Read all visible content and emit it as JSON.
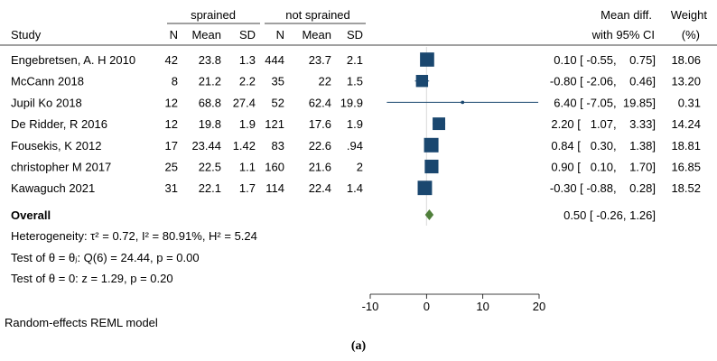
{
  "chart_data": {
    "type": "forest",
    "group_headers": [
      "sprained",
      "not sprained"
    ],
    "columns": [
      "Study",
      "N",
      "Mean",
      "SD",
      "N",
      "Mean",
      "SD"
    ],
    "effect_header": [
      "Mean diff.",
      "with 95% CI"
    ],
    "weight_header": [
      "Weight",
      "(%)"
    ],
    "studies": [
      {
        "name": "Engebretsen, A. H 2010",
        "n1": "42",
        "mean1": "23.8",
        "sd1": "1.3",
        "n2": "444",
        "mean2": "23.7",
        "sd2": "2.1",
        "es": 0.1,
        "lo": -0.55,
        "hi": 0.75,
        "ci_text": "0.10 [ -0.55,    0.75]",
        "weight": "18.06",
        "weight_value": 18.06
      },
      {
        "name": "McCann 2018",
        "n1": "8",
        "mean1": "21.2",
        "sd1": "2.2",
        "n2": "35",
        "mean2": "22",
        "sd2": "1.5",
        "es": -0.8,
        "lo": -2.06,
        "hi": 0.46,
        "ci_text": "-0.80 [ -2.06,    0.46]",
        "weight": "13.20",
        "weight_value": 13.2
      },
      {
        "name": "Jupil Ko 2018",
        "n1": "12",
        "mean1": "68.8",
        "sd1": "27.4",
        "n2": "52",
        "mean2": "62.4",
        "sd2": "19.9",
        "es": 6.4,
        "lo": -7.05,
        "hi": 19.85,
        "ci_text": "6.40 [ -7.05,  19.85]",
        "weight": "0.31",
        "weight_value": 0.31
      },
      {
        "name": "De Ridder, R 2016",
        "n1": "12",
        "mean1": "19.8",
        "sd1": "1.9",
        "n2": "121",
        "mean2": "17.6",
        "sd2": "1.9",
        "es": 2.2,
        "lo": 1.07,
        "hi": 3.33,
        "ci_text": "2.20 [   1.07,    3.33]",
        "weight": "14.24",
        "weight_value": 14.24
      },
      {
        "name": "Fousekis, K 2012",
        "n1": "17",
        "mean1": "23.44",
        "sd1": "1.42",
        "n2": "83",
        "mean2": "22.6",
        "sd2": ".94",
        "es": 0.84,
        "lo": 0.3,
        "hi": 1.38,
        "ci_text": "0.84 [   0.30,    1.38]",
        "weight": "18.81",
        "weight_value": 18.81
      },
      {
        "name": "christopher M 2017",
        "n1": "25",
        "mean1": "22.5",
        "sd1": "1.1",
        "n2": "160",
        "mean2": "21.6",
        "sd2": "2",
        "es": 0.9,
        "lo": 0.1,
        "hi": 1.7,
        "ci_text": "0.90 [   0.10,    1.70]",
        "weight": "16.85",
        "weight_value": 16.85
      },
      {
        "name": "Kawaguch 2021",
        "n1": "31",
        "mean1": "22.1",
        "sd1": "1.7",
        "n2": "114",
        "mean2": "22.4",
        "sd2": "1.4",
        "es": -0.3,
        "lo": -0.88,
        "hi": 0.28,
        "ci_text": "-0.30 [ -0.88,    0.28]",
        "weight": "18.52",
        "weight_value": 18.52
      }
    ],
    "overall": {
      "label": "Overall",
      "es": 0.5,
      "lo": -0.26,
      "hi": 1.26,
      "ci_text": "0.50 [ -0.26,    1.26]"
    },
    "heterogeneity": "Heterogeneity: τ² = 0.72, I² = 80.91%, H² = 5.24",
    "test_homogeneity": "Test of θ = θⱼ: Q(6) = 24.44, p = 0.00",
    "test_zero": "Test of θ = 0: z = 1.29, p = 0.20",
    "x_ticks": [
      -10,
      0,
      10,
      20
    ],
    "x_tick_labels": [
      "-10",
      "0",
      "10",
      "20"
    ],
    "xlim": [
      -10,
      20
    ],
    "model_note": "Random-effects REML model",
    "caption": "(a)",
    "colors": {
      "box": "#1a476f",
      "line": "#1a476f",
      "diamond": "#4f7f3a",
      "text": "#000000"
    }
  }
}
